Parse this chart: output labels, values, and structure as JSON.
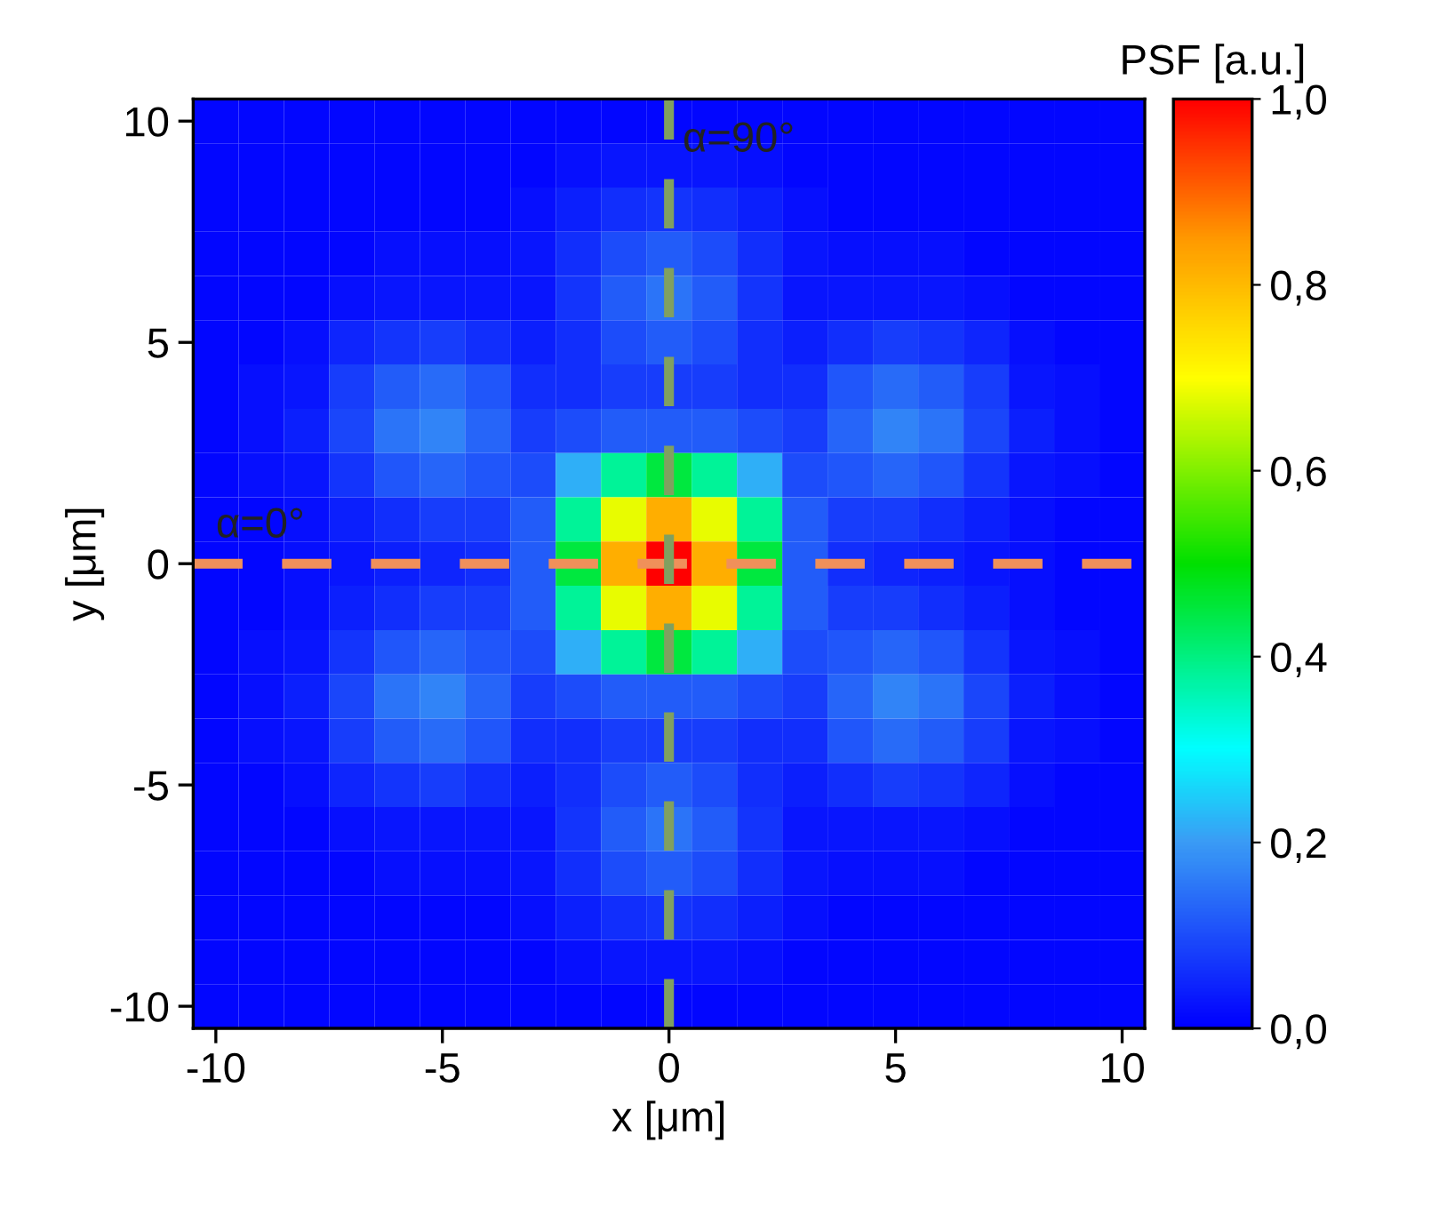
{
  "chart_data": {
    "type": "heatmap",
    "xlabel": "x [μm]",
    "ylabel": "y [μm]",
    "clabel": "PSF [a.u.]",
    "clim": [
      0,
      1
    ],
    "cticks": [
      {
        "value": 0,
        "label": "0,0"
      },
      {
        "value": 0.2,
        "label": "0,2"
      },
      {
        "value": 0.4,
        "label": "0,4"
      },
      {
        "value": 0.6,
        "label": "0,6"
      },
      {
        "value": 0.8,
        "label": "0,8"
      },
      {
        "value": 1,
        "label": "1,0"
      }
    ],
    "grid": false,
    "categories": [
      "-10",
      null,
      null,
      null,
      null,
      "-5",
      null,
      null,
      null,
      null,
      "0",
      null,
      null,
      null,
      null,
      "5",
      null,
      null,
      null,
      null,
      "10"
    ],
    "y_categories": [
      "10",
      null,
      null,
      null,
      null,
      "5",
      null,
      null,
      null,
      null,
      "0",
      null,
      null,
      null,
      null,
      "-5",
      null,
      null,
      null,
      null,
      "-10"
    ],
    "cells": [
      [
        0.01,
        0.01,
        0.01,
        0.01,
        0.01,
        0.01,
        0.01,
        0.01,
        0.01,
        0.01,
        0.01,
        0.01,
        0.01,
        0.01,
        0.01,
        0.01,
        0.01,
        0.01,
        0.01,
        0.01,
        0.01
      ],
      [
        0.01,
        0.01,
        0.01,
        0.01,
        0.01,
        0.01,
        0.01,
        0.01,
        0.02,
        0.03,
        0.03,
        0.03,
        0.02,
        0.01,
        0.01,
        0.01,
        0.01,
        0.01,
        0.01,
        0.01,
        0.01
      ],
      [
        0.01,
        0.01,
        0.01,
        0.01,
        0.01,
        0.01,
        0.01,
        0.02,
        0.04,
        0.06,
        0.07,
        0.06,
        0.04,
        0.02,
        0.01,
        0.01,
        0.01,
        0.01,
        0.01,
        0.01,
        0.01
      ],
      [
        0.01,
        0.01,
        0.01,
        0.01,
        0.02,
        0.02,
        0.02,
        0.03,
        0.06,
        0.1,
        0.12,
        0.1,
        0.06,
        0.03,
        0.02,
        0.02,
        0.02,
        0.01,
        0.01,
        0.01,
        0.01
      ],
      [
        0.01,
        0.01,
        0.01,
        0.02,
        0.03,
        0.03,
        0.03,
        0.03,
        0.07,
        0.12,
        0.15,
        0.12,
        0.07,
        0.03,
        0.03,
        0.03,
        0.03,
        0.02,
        0.01,
        0.01,
        0.01
      ],
      [
        0.01,
        0.01,
        0.02,
        0.05,
        0.07,
        0.08,
        0.06,
        0.04,
        0.06,
        0.1,
        0.12,
        0.1,
        0.06,
        0.04,
        0.06,
        0.08,
        0.07,
        0.05,
        0.02,
        0.01,
        0.01
      ],
      [
        0.01,
        0.02,
        0.03,
        0.08,
        0.12,
        0.14,
        0.11,
        0.06,
        0.06,
        0.08,
        0.08,
        0.08,
        0.06,
        0.06,
        0.11,
        0.14,
        0.12,
        0.08,
        0.03,
        0.02,
        0.01
      ],
      [
        0.01,
        0.02,
        0.04,
        0.09,
        0.15,
        0.17,
        0.13,
        0.08,
        0.1,
        0.12,
        0.12,
        0.12,
        0.1,
        0.08,
        0.13,
        0.17,
        0.15,
        0.09,
        0.04,
        0.02,
        0.01
      ],
      [
        0.01,
        0.02,
        0.03,
        0.07,
        0.11,
        0.13,
        0.11,
        0.1,
        0.22,
        0.38,
        0.45,
        0.38,
        0.22,
        0.1,
        0.11,
        0.13,
        0.11,
        0.07,
        0.03,
        0.02,
        0.01
      ],
      [
        0.01,
        0.01,
        0.02,
        0.04,
        0.06,
        0.08,
        0.08,
        0.12,
        0.38,
        0.68,
        0.82,
        0.68,
        0.38,
        0.12,
        0.08,
        0.08,
        0.06,
        0.04,
        0.02,
        0.01,
        0.01
      ],
      [
        0.01,
        0.01,
        0.02,
        0.03,
        0.04,
        0.05,
        0.06,
        0.12,
        0.45,
        0.82,
        1.0,
        0.82,
        0.45,
        0.12,
        0.06,
        0.05,
        0.04,
        0.03,
        0.02,
        0.01,
        0.01
      ],
      [
        0.01,
        0.01,
        0.02,
        0.04,
        0.06,
        0.08,
        0.08,
        0.12,
        0.38,
        0.68,
        0.82,
        0.68,
        0.38,
        0.12,
        0.08,
        0.08,
        0.06,
        0.04,
        0.02,
        0.01,
        0.01
      ],
      [
        0.01,
        0.02,
        0.03,
        0.07,
        0.11,
        0.13,
        0.11,
        0.1,
        0.22,
        0.38,
        0.45,
        0.38,
        0.22,
        0.1,
        0.11,
        0.13,
        0.11,
        0.07,
        0.03,
        0.02,
        0.01
      ],
      [
        0.01,
        0.02,
        0.04,
        0.09,
        0.15,
        0.17,
        0.13,
        0.08,
        0.1,
        0.12,
        0.12,
        0.12,
        0.1,
        0.08,
        0.13,
        0.17,
        0.15,
        0.09,
        0.04,
        0.02,
        0.01
      ],
      [
        0.01,
        0.02,
        0.03,
        0.08,
        0.12,
        0.14,
        0.11,
        0.06,
        0.06,
        0.08,
        0.08,
        0.08,
        0.06,
        0.06,
        0.11,
        0.14,
        0.12,
        0.08,
        0.03,
        0.02,
        0.01
      ],
      [
        0.01,
        0.01,
        0.02,
        0.05,
        0.07,
        0.08,
        0.06,
        0.04,
        0.06,
        0.1,
        0.12,
        0.1,
        0.06,
        0.04,
        0.06,
        0.08,
        0.07,
        0.05,
        0.02,
        0.01,
        0.01
      ],
      [
        0.01,
        0.01,
        0.01,
        0.02,
        0.03,
        0.03,
        0.03,
        0.03,
        0.07,
        0.12,
        0.15,
        0.12,
        0.07,
        0.03,
        0.03,
        0.03,
        0.03,
        0.02,
        0.01,
        0.01,
        0.01
      ],
      [
        0.01,
        0.01,
        0.01,
        0.01,
        0.02,
        0.02,
        0.02,
        0.03,
        0.06,
        0.1,
        0.12,
        0.1,
        0.06,
        0.03,
        0.02,
        0.02,
        0.02,
        0.01,
        0.01,
        0.01,
        0.01
      ],
      [
        0.01,
        0.01,
        0.01,
        0.01,
        0.01,
        0.01,
        0.01,
        0.02,
        0.04,
        0.06,
        0.07,
        0.06,
        0.04,
        0.02,
        0.01,
        0.01,
        0.01,
        0.01,
        0.01,
        0.01,
        0.01
      ],
      [
        0.01,
        0.01,
        0.01,
        0.01,
        0.01,
        0.01,
        0.01,
        0.01,
        0.02,
        0.03,
        0.03,
        0.03,
        0.02,
        0.01,
        0.01,
        0.01,
        0.01,
        0.01,
        0.01,
        0.01,
        0.01
      ],
      [
        0.01,
        0.01,
        0.01,
        0.01,
        0.01,
        0.01,
        0.01,
        0.01,
        0.01,
        0.01,
        0.01,
        0.01,
        0.01,
        0.01,
        0.01,
        0.01,
        0.01,
        0.01,
        0.01,
        0.01,
        0.01
      ]
    ],
    "ref_lines": [
      {
        "axis": "y",
        "value": "0",
        "label": "α=0°",
        "color": "#f0905a",
        "line_style": "dashed"
      },
      {
        "axis": "x",
        "value": "0",
        "label": "α=90°",
        "color": "#80a060",
        "line_style": "dashed"
      }
    ]
  }
}
